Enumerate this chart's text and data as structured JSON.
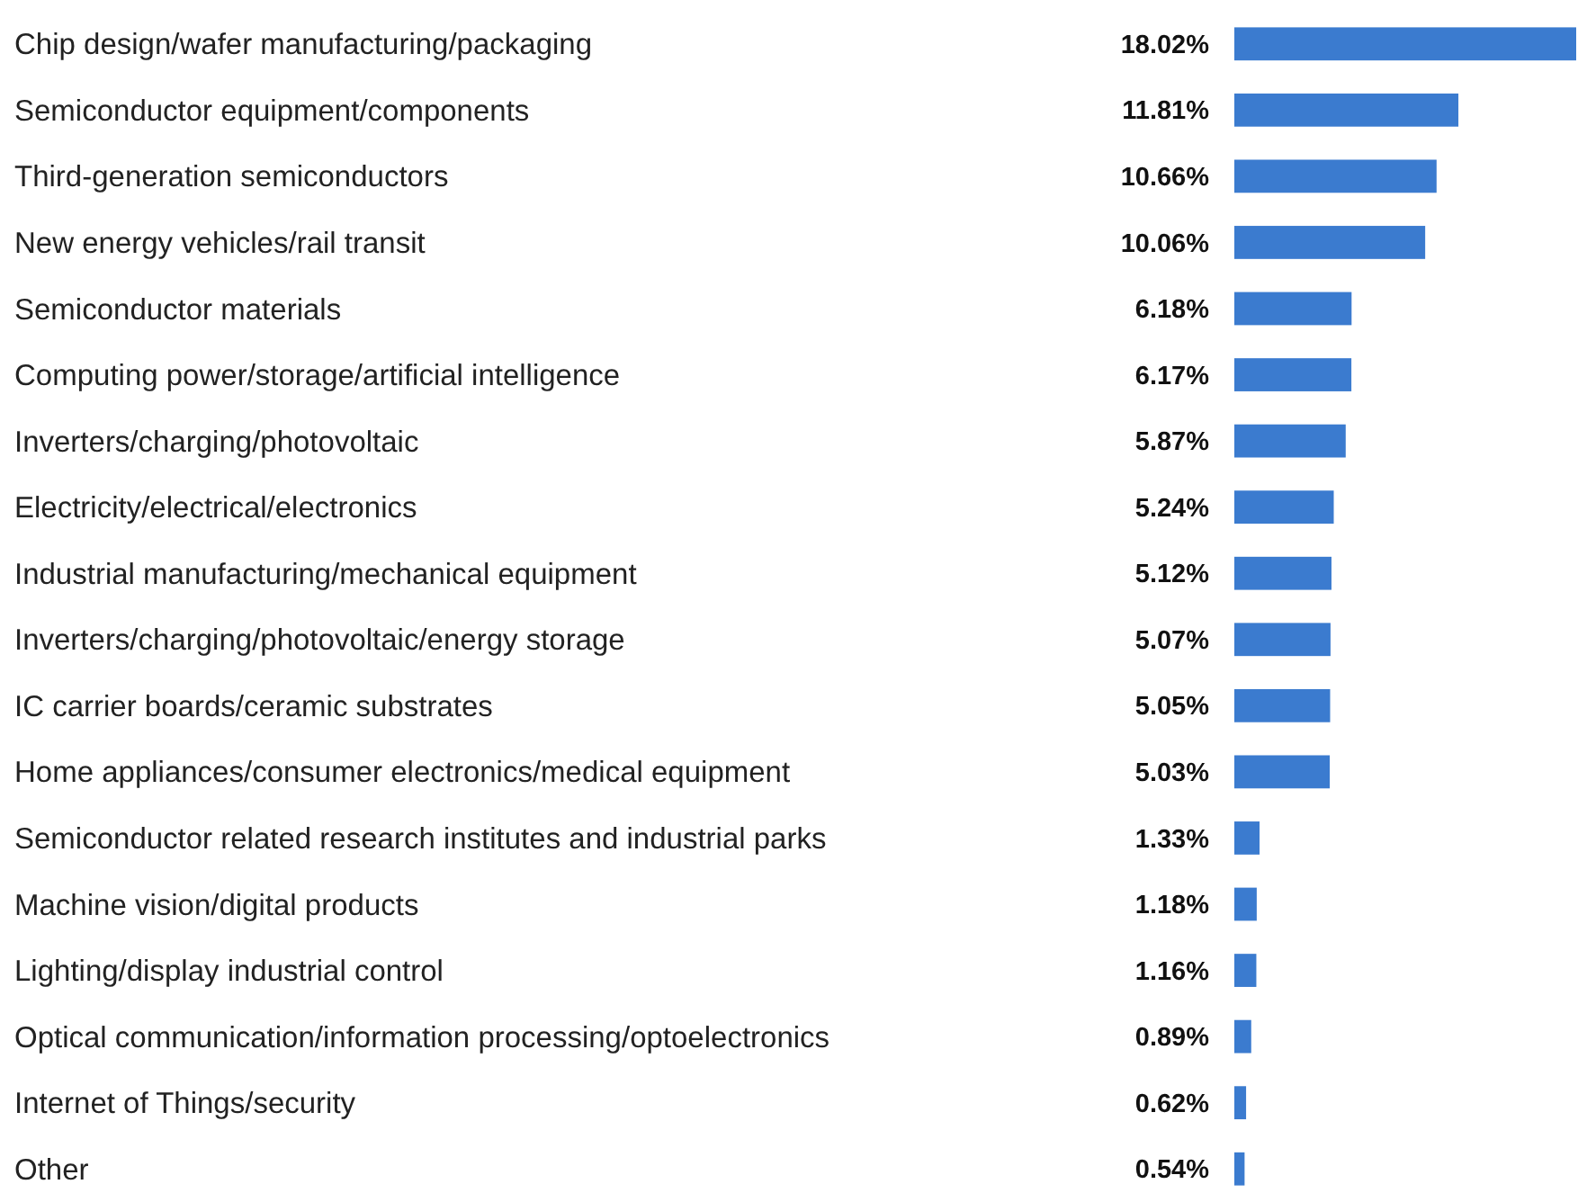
{
  "chart_data": {
    "type": "bar",
    "orientation": "horizontal",
    "color": "#3b7bcf",
    "categories": [
      "Chip design/wafer manufacturing/packaging",
      "Semiconductor equipment/components",
      "Third-generation semiconductors",
      "New energy vehicles/rail transit",
      "Semiconductor materials",
      "Computing power/storage/artificial intelligence",
      "Inverters/charging/photovoltaic",
      "Electricity/electrical/electronics",
      "Industrial manufacturing/mechanical equipment",
      "Inverters/charging/photovoltaic/energy storage",
      "IC carrier boards/ceramic substrates",
      "Home appliances/consumer electronics/medical equipment",
      "Semiconductor related research institutes and industrial parks",
      "Machine vision/digital products",
      "Lighting/display industrial control",
      "Optical communication/information processing/optoelectronics",
      "Internet of Things/security",
      "Other"
    ],
    "values": [
      18.02,
      11.81,
      10.66,
      10.06,
      6.18,
      6.17,
      5.87,
      5.24,
      5.12,
      5.07,
      5.05,
      5.03,
      1.33,
      1.18,
      1.16,
      0.89,
      0.62,
      0.54
    ],
    "value_labels": [
      "18.02%",
      "11.81%",
      "10.66%",
      "10.06%",
      "6.18%",
      "6.17%",
      "5.87%",
      "5.24%",
      "5.12%",
      "5.07%",
      "5.05%",
      "5.03%",
      "1.33%",
      "1.18%",
      "1.16%",
      "0.89%",
      "0.62%",
      "0.54%"
    ]
  }
}
